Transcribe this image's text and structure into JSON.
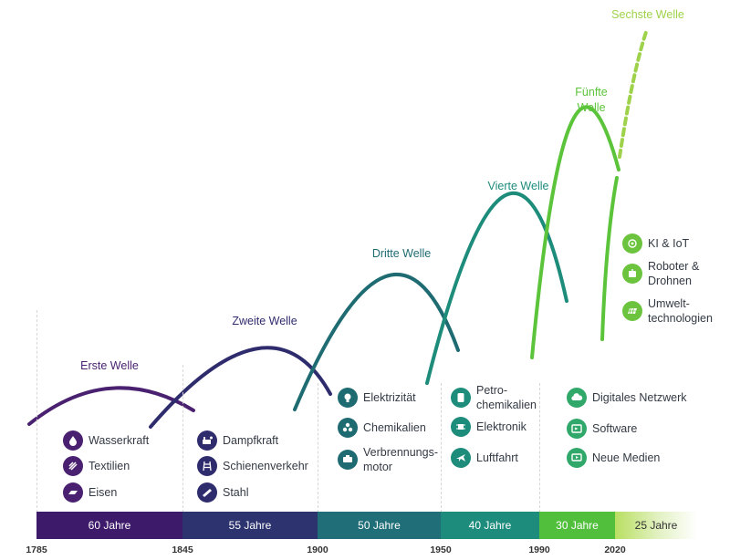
{
  "waves": [
    {
      "label": "Erste Welle",
      "color": "#4a2170"
    },
    {
      "label": "Zweite Welle",
      "color": "#2f2c6e"
    },
    {
      "label": "Dritte Welle",
      "color": "#1e6b72"
    },
    {
      "label": "Vierte Welle",
      "color": "#1d8c7b"
    },
    {
      "label": "Fünfte\nWelle",
      "color": "#5cc43a"
    },
    {
      "label": "Sechste Welle",
      "color": "#9ed24a"
    }
  ],
  "groups": [
    {
      "color": "#4a2170",
      "items": [
        {
          "label": "Wasserkraft",
          "icon": "water-power-icon"
        },
        {
          "label": "Textilien",
          "icon": "textile-icon"
        },
        {
          "label": "Eisen",
          "icon": "iron-icon"
        }
      ]
    },
    {
      "color": "#2f2c6e",
      "items": [
        {
          "label": "Dampfkraft",
          "icon": "steam-engine-icon"
        },
        {
          "label": "Schienenverkehr",
          "icon": "rail-icon"
        },
        {
          "label": "Stahl",
          "icon": "steel-icon"
        }
      ]
    },
    {
      "color": "#1e6b72",
      "items": [
        {
          "label": "Elektrizität",
          "icon": "lightbulb-icon"
        },
        {
          "label": "Chemikalien",
          "icon": "molecule-icon"
        },
        {
          "label": "Verbrennungs-\nmotor",
          "icon": "engine-icon"
        }
      ]
    },
    {
      "color": "#1d8c7b",
      "items": [
        {
          "label": "Petro-\nchemikalien",
          "icon": "oil-barrel-icon"
        },
        {
          "label": "Elektronik",
          "icon": "chip-icon"
        },
        {
          "label": "Luftfahrt",
          "icon": "airplane-icon"
        }
      ]
    },
    {
      "color": "#2fa86a",
      "items": [
        {
          "label": "Digitales Netzwerk",
          "icon": "cloud-network-icon"
        },
        {
          "label": "Software",
          "icon": "software-icon"
        },
        {
          "label": "Neue Medien",
          "icon": "media-icon"
        }
      ]
    },
    {
      "color": "#6cc43e",
      "items": [
        {
          "label": "KI & IoT",
          "icon": "ai-brain-icon"
        },
        {
          "label": "Roboter &\nDrohnen",
          "icon": "robot-icon"
        },
        {
          "label": "Umwelt-\ntechnologien",
          "icon": "solar-panel-icon"
        }
      ]
    }
  ],
  "timeline": {
    "segments": [
      {
        "label": "60 Jahre",
        "color": "#3e1a6b"
      },
      {
        "label": "55 Jahre",
        "color": "#2d336f"
      },
      {
        "label": "50 Jahre",
        "color": "#1f6e78"
      },
      {
        "label": "40 Jahre",
        "color": "#1e8c7c"
      },
      {
        "label": "30 Jahre",
        "color": "#52bf3c"
      },
      {
        "label": "25 Jahre",
        "color": "#b9df62"
      }
    ],
    "years": [
      "1785",
      "1845",
      "1900",
      "1950",
      "1990",
      "2020"
    ]
  }
}
